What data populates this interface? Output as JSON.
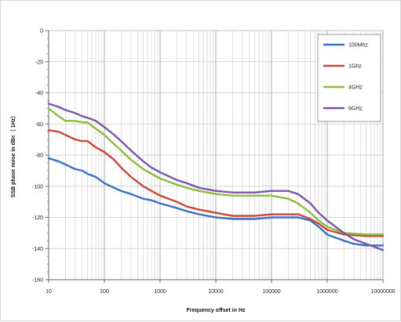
{
  "chart_data": {
    "type": "line",
    "title": "",
    "xlabel": "Frequency offset in Hz",
    "ylabel": "SSB phase noise in dBc（ 1Hz）",
    "x_scale": "log",
    "xlim": [
      10,
      10000000
    ],
    "ylim": [
      -160,
      0
    ],
    "x_ticks": [
      10,
      100,
      1000,
      10000,
      100000,
      1000000,
      10000000
    ],
    "x_tick_labels": [
      "10",
      "100",
      "1000",
      "10000",
      "100000",
      "1000000",
      "10000000"
    ],
    "y_ticks": [
      0,
      -20,
      -40,
      -60,
      -80,
      -100,
      -120,
      -140,
      -160
    ],
    "y_tick_labels": [
      "0",
      "-20",
      "-40",
      "-60",
      "-80",
      "-100",
      "-120",
      "-140",
      "-160"
    ],
    "grid": true,
    "legend_position": "top-right",
    "series": [
      {
        "name": "100Mhz",
        "color": "#3a6fc4",
        "points": [
          [
            10,
            -82
          ],
          [
            15,
            -84
          ],
          [
            20,
            -86
          ],
          [
            30,
            -89
          ],
          [
            40,
            -90
          ],
          [
            50,
            -92
          ],
          [
            70,
            -94
          ],
          [
            100,
            -98
          ],
          [
            150,
            -101
          ],
          [
            200,
            -103
          ],
          [
            300,
            -105
          ],
          [
            500,
            -108
          ],
          [
            700,
            -109
          ],
          [
            1000,
            -111
          ],
          [
            2000,
            -114
          ],
          [
            3000,
            -116
          ],
          [
            5000,
            -118
          ],
          [
            10000,
            -120
          ],
          [
            20000,
            -121
          ],
          [
            50000,
            -121
          ],
          [
            100000,
            -120
          ],
          [
            200000,
            -120
          ],
          [
            300000,
            -120
          ],
          [
            500000,
            -122
          ],
          [
            700000,
            -126
          ],
          [
            1000000,
            -131
          ],
          [
            2000000,
            -135
          ],
          [
            3000000,
            -137
          ],
          [
            5000000,
            -138
          ],
          [
            10000000,
            -138
          ]
        ]
      },
      {
        "name": "1Ghz",
        "color": "#c8473c",
        "points": [
          [
            10,
            -64
          ],
          [
            15,
            -65
          ],
          [
            20,
            -67
          ],
          [
            30,
            -70
          ],
          [
            40,
            -71
          ],
          [
            50,
            -71
          ],
          [
            70,
            -75
          ],
          [
            100,
            -78
          ],
          [
            150,
            -83
          ],
          [
            200,
            -88
          ],
          [
            300,
            -94
          ],
          [
            500,
            -100
          ],
          [
            700,
            -103
          ],
          [
            1000,
            -106
          ],
          [
            2000,
            -110
          ],
          [
            3000,
            -113
          ],
          [
            5000,
            -115
          ],
          [
            10000,
            -117
          ],
          [
            20000,
            -119
          ],
          [
            50000,
            -119
          ],
          [
            100000,
            -118
          ],
          [
            200000,
            -118
          ],
          [
            300000,
            -118
          ],
          [
            500000,
            -121
          ],
          [
            700000,
            -124
          ],
          [
            1000000,
            -128
          ],
          [
            2000000,
            -131
          ],
          [
            5000000,
            -132
          ],
          [
            10000000,
            -132
          ]
        ]
      },
      {
        "name": "4GHz",
        "color": "#8cbc3c",
        "points": [
          [
            10,
            -50
          ],
          [
            15,
            -55
          ],
          [
            20,
            -58
          ],
          [
            30,
            -58
          ],
          [
            40,
            -59
          ],
          [
            50,
            -59
          ],
          [
            70,
            -63
          ],
          [
            100,
            -67
          ],
          [
            150,
            -73
          ],
          [
            200,
            -77
          ],
          [
            300,
            -83
          ],
          [
            500,
            -89
          ],
          [
            700,
            -92
          ],
          [
            1000,
            -95
          ],
          [
            2000,
            -99
          ],
          [
            3000,
            -101
          ],
          [
            5000,
            -103
          ],
          [
            10000,
            -105
          ],
          [
            20000,
            -106
          ],
          [
            50000,
            -106
          ],
          [
            100000,
            -106
          ],
          [
            200000,
            -108
          ],
          [
            300000,
            -111
          ],
          [
            500000,
            -117
          ],
          [
            700000,
            -122
          ],
          [
            1000000,
            -126
          ],
          [
            2000000,
            -130
          ],
          [
            5000000,
            -131
          ],
          [
            10000000,
            -131
          ]
        ]
      },
      {
        "name": "6GHz",
        "color": "#7b55a8",
        "points": [
          [
            10,
            -47
          ],
          [
            15,
            -49
          ],
          [
            20,
            -51
          ],
          [
            30,
            -53
          ],
          [
            40,
            -55
          ],
          [
            50,
            -56
          ],
          [
            70,
            -58
          ],
          [
            100,
            -62
          ],
          [
            150,
            -67
          ],
          [
            200,
            -71
          ],
          [
            300,
            -77
          ],
          [
            500,
            -84
          ],
          [
            700,
            -88
          ],
          [
            1000,
            -91
          ],
          [
            2000,
            -96
          ],
          [
            3000,
            -98
          ],
          [
            5000,
            -101
          ],
          [
            10000,
            -103
          ],
          [
            20000,
            -104
          ],
          [
            50000,
            -104
          ],
          [
            100000,
            -103
          ],
          [
            200000,
            -103
          ],
          [
            300000,
            -105
          ],
          [
            500000,
            -111
          ],
          [
            700000,
            -117
          ],
          [
            1000000,
            -122
          ],
          [
            2000000,
            -130
          ],
          [
            3000000,
            -134
          ],
          [
            5000000,
            -137
          ],
          [
            10000000,
            -141
          ]
        ]
      }
    ]
  }
}
